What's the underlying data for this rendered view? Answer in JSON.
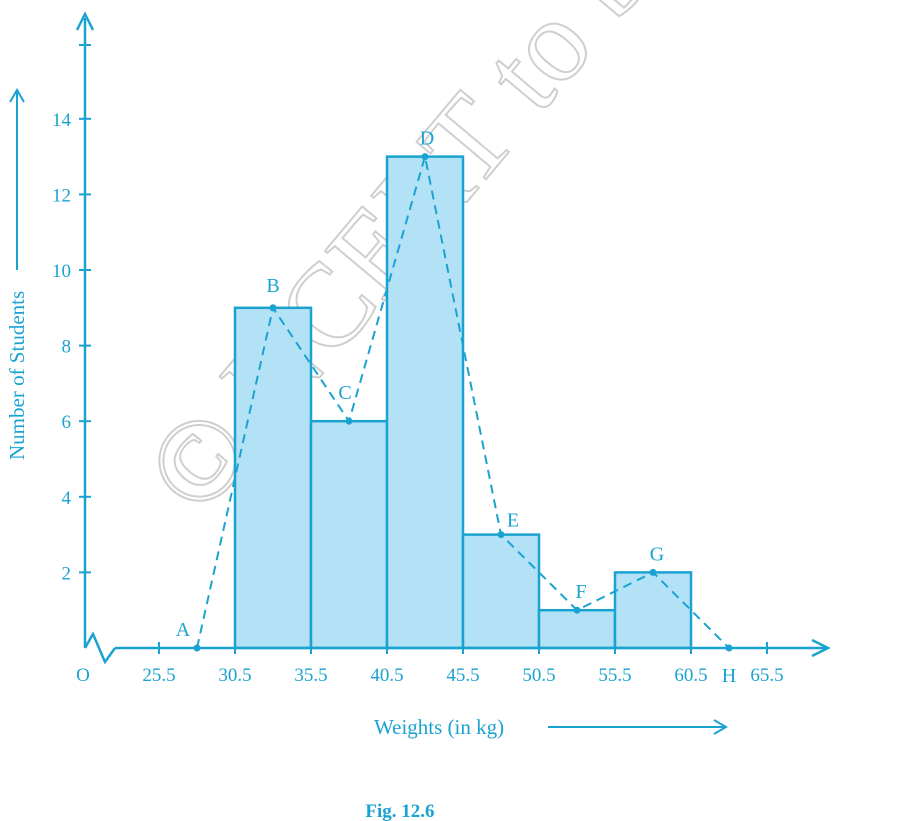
{
  "colors": {
    "accent": "#1aa3d1",
    "bar_fill": "#b3e2f7",
    "watermark": "#cfcfcf"
  },
  "watermark": "© NCERT to be republished",
  "caption": "Fig. 12.6",
  "chart_data": {
    "type": "bar",
    "subtype": "histogram with frequency polygon",
    "xlabel": "Weights (in kg)",
    "ylabel": "Number of Students",
    "origin_label": "O",
    "x_tick_labels": [
      "25.5",
      "30.5",
      "35.5",
      "40.5",
      "45.5",
      "50.5",
      "55.5",
      "60.5",
      "65.5"
    ],
    "x_ticks": [
      25.5,
      30.5,
      35.5,
      40.5,
      45.5,
      50.5,
      55.5,
      60.5,
      65.5
    ],
    "y_ticks": [
      2,
      4,
      6,
      8,
      10,
      12,
      14
    ],
    "y_tick_labels": [
      "2",
      "4",
      "6",
      "8",
      "10",
      "12",
      "14"
    ],
    "ylim": [
      0,
      14
    ],
    "bins": [
      {
        "from": 30.5,
        "to": 35.5,
        "value": 9
      },
      {
        "from": 35.5,
        "to": 40.5,
        "value": 6
      },
      {
        "from": 40.5,
        "to": 45.5,
        "value": 13
      },
      {
        "from": 45.5,
        "to": 50.5,
        "value": 3
      },
      {
        "from": 50.5,
        "to": 55.5,
        "value": 1
      },
      {
        "from": 55.5,
        "to": 60.5,
        "value": 2
      }
    ],
    "polygon": [
      {
        "label": "A",
        "x": 28,
        "y": 0
      },
      {
        "label": "B",
        "x": 33,
        "y": 9
      },
      {
        "label": "C",
        "x": 38,
        "y": 6
      },
      {
        "label": "D",
        "x": 43,
        "y": 13
      },
      {
        "label": "E",
        "x": 48,
        "y": 3
      },
      {
        "label": "F",
        "x": 53,
        "y": 1
      },
      {
        "label": "G",
        "x": 58,
        "y": 2
      },
      {
        "label": "H",
        "x": 63,
        "y": 0
      }
    ],
    "axis_break": true,
    "grid": false,
    "legend": "none"
  }
}
